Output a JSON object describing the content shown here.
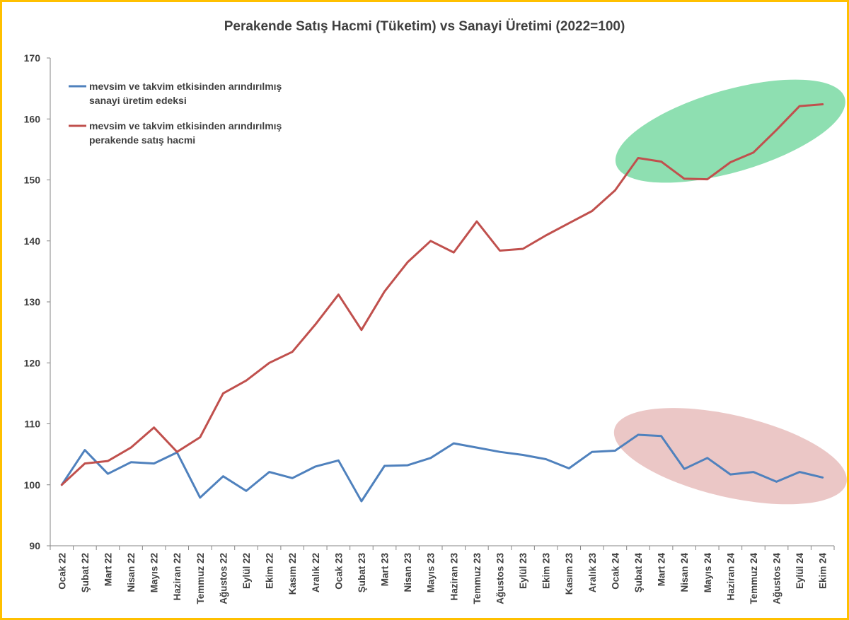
{
  "chart_data": {
    "type": "line",
    "title": "Perakende Satış Hacmi (Tüketim) vs Sanayi Üretimi (2022=100)",
    "xlabel": "",
    "ylabel": "",
    "ylim": [
      90,
      170
    ],
    "yticks": [
      90,
      100,
      110,
      120,
      130,
      140,
      150,
      160,
      170
    ],
    "grid": false,
    "legend_position": "top-left",
    "categories": [
      "Ocak 22",
      "Şubat 22",
      "Mart 22",
      "Nisan 22",
      "Mayıs 22",
      "Haziran 22",
      "Temmuz 22",
      "Ağustos 22",
      "Eylül 22",
      "Ekim 22",
      "Kasım 22",
      "Aralık 22",
      "Ocak 23",
      "Şubat 23",
      "Mart 23",
      "Nisan 23",
      "Mayıs 23",
      "Haziran 23",
      "Temmuz 23",
      "Ağustos 23",
      "Eylül 23",
      "Ekim 23",
      "Kasım 23",
      "Aralık 23",
      "Ocak 24",
      "Şubat 24",
      "Mart 24",
      "Nisan 24",
      "Mayıs 24",
      "Haziran 24",
      "Temmuz 24",
      "Ağustos 24",
      "Eylül 24",
      "Ekim 24"
    ],
    "series": [
      {
        "name": "mevsim ve takvim etkisinden arındırılmış sanayi üretim edeksi",
        "legend_lines": [
          "mevsim ve takvim etkisinden arındırılmış",
          "sanayi üretim edeksi"
        ],
        "color": "#4F81BD",
        "values": [
          100.0,
          105.7,
          101.8,
          103.7,
          103.5,
          105.3,
          97.9,
          101.4,
          99.0,
          102.1,
          101.1,
          103.0,
          104.0,
          97.3,
          103.1,
          103.2,
          104.4,
          106.8,
          106.1,
          105.4,
          104.9,
          104.2,
          102.7,
          105.4,
          105.6,
          108.2,
          108.0,
          102.6,
          104.4,
          101.7,
          102.1,
          100.5,
          102.1,
          101.2
        ]
      },
      {
        "name": "mevsim ve takvim etkisinden arındırılmış perakende satış hacmi",
        "legend_lines": [
          "mevsim ve takvim etkisinden arındırılmış",
          "perakende satış hacmi"
        ],
        "color": "#C0504D",
        "values": [
          100.0,
          103.5,
          103.9,
          106.1,
          109.4,
          105.4,
          107.8,
          115.0,
          117.1,
          120.0,
          121.8,
          126.3,
          131.2,
          125.4,
          131.7,
          136.5,
          140.0,
          138.1,
          143.2,
          138.4,
          138.7,
          140.9,
          142.9,
          144.9,
          148.3,
          153.6,
          153.0,
          150.2,
          150.1,
          152.9,
          154.5,
          158.2,
          162.1,
          162.4
        ]
      }
    ],
    "highlights": [
      {
        "series": "perakende",
        "from": "Şubat 24",
        "to": "Ekim 24",
        "color": "#3CC878"
      },
      {
        "series": "sanayi",
        "from": "Şubat 24",
        "to": "Ekim 24",
        "color": "#C0504D"
      }
    ]
  }
}
